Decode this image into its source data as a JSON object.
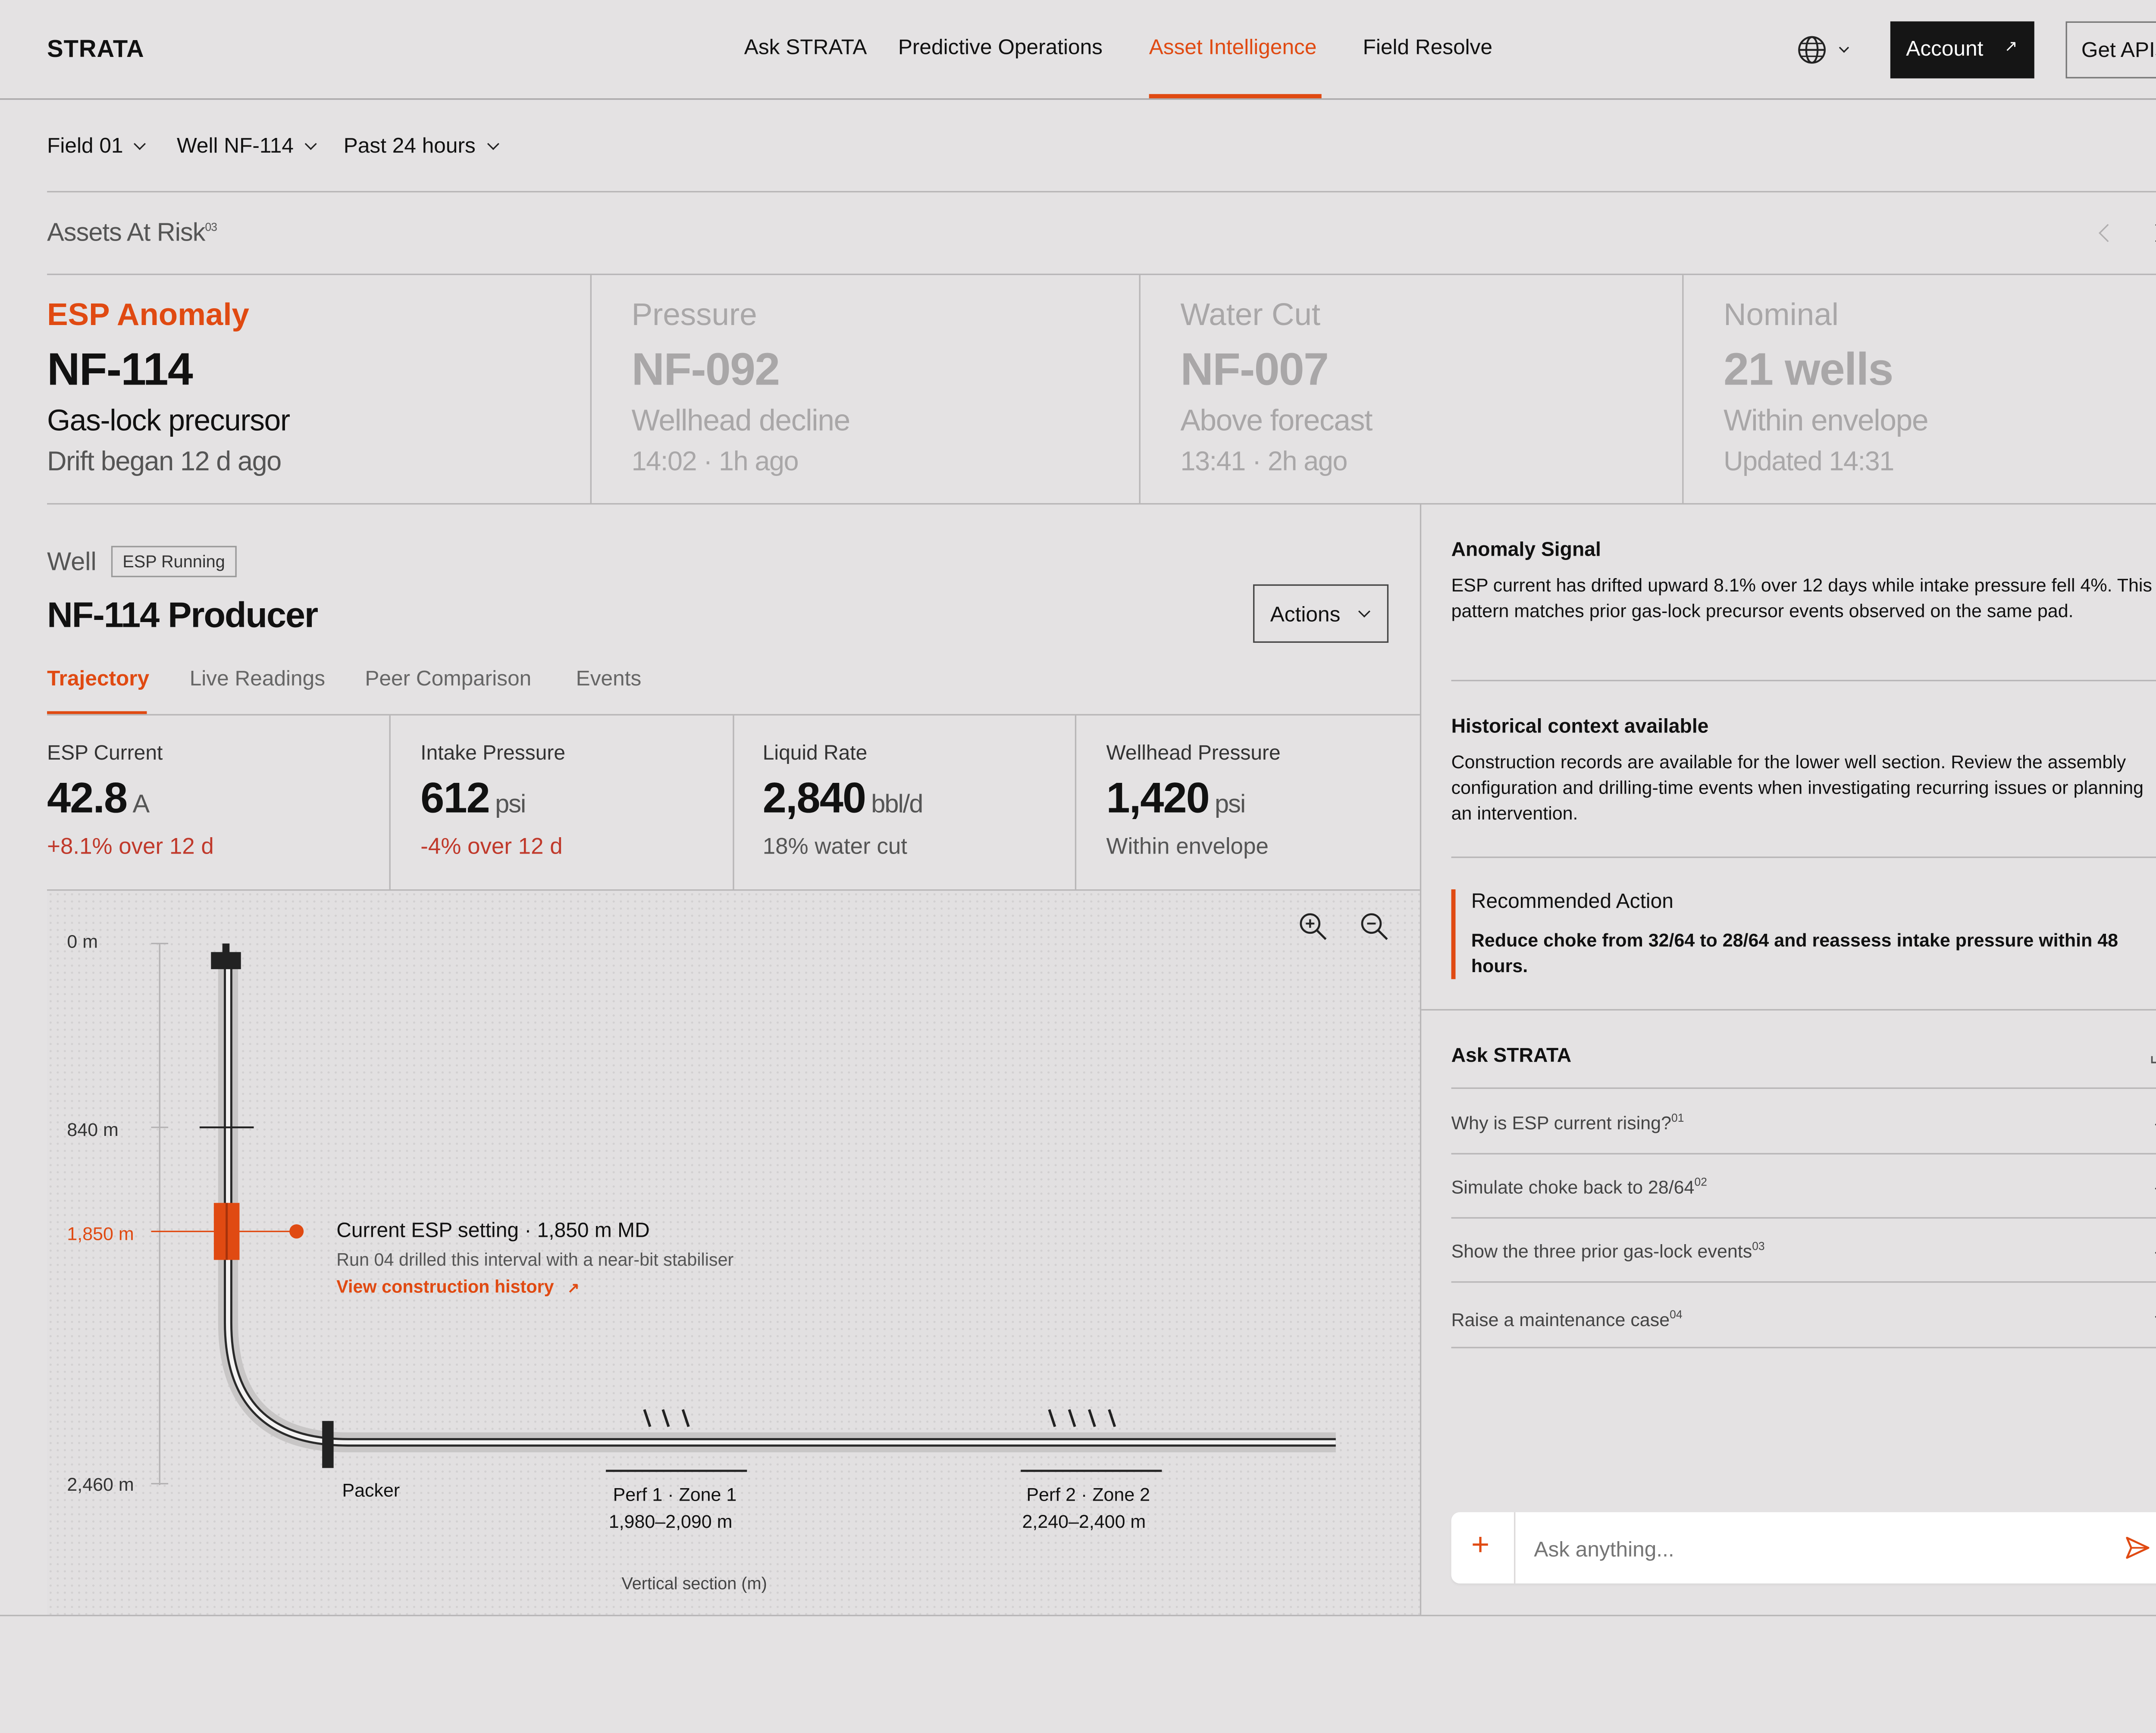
{
  "header": {
    "brand": "STRATA",
    "nav": [
      {
        "label": "Ask STRATA",
        "active": false
      },
      {
        "label": "Predictive Operations",
        "active": false
      },
      {
        "label": "Asset Intelligence",
        "active": true
      },
      {
        "label": "Field Resolve",
        "active": false
      }
    ],
    "language_icon": "globe-icon",
    "account_label": "Account",
    "get_apis_label": "Get APIs"
  },
  "filters": {
    "field": "Field 01",
    "well": "Well NF-114",
    "period": "Past 24 hours"
  },
  "risk": {
    "title": "Assets At Risk",
    "count": "03",
    "cards": [
      {
        "kind": "ESP Anomaly",
        "id": "NF-114",
        "desc": "Gas-lock precursor",
        "sub": "Drift began 12 d ago",
        "active": true
      },
      {
        "kind": "Pressure",
        "id": "NF-092",
        "desc": "Wellhead decline",
        "sub": "14:02 · 1h ago",
        "active": false
      },
      {
        "kind": "Water Cut",
        "id": "NF-007",
        "desc": "Above forecast",
        "sub": "13:41 · 2h ago",
        "active": false
      },
      {
        "kind": "Nominal",
        "id": "21 wells",
        "desc": "Within envelope",
        "sub": "Updated 14:31",
        "active": false
      }
    ]
  },
  "well": {
    "label": "Well",
    "status_badge": "ESP Running",
    "name": "NF-114 Producer",
    "actions_label": "Actions",
    "tabs": [
      {
        "label": "Trajectory",
        "active": true
      },
      {
        "label": "Live Readings",
        "active": false
      },
      {
        "label": "Peer Comparison",
        "active": false
      },
      {
        "label": "Events",
        "active": false
      }
    ],
    "metrics": [
      {
        "label": "ESP Current",
        "value": "42.8",
        "unit": "A",
        "sub": "+8.1% over 12 d",
        "alert": true
      },
      {
        "label": "Intake Pressure",
        "value": "612",
        "unit": "psi",
        "sub": "-4% over 12 d",
        "alert": true
      },
      {
        "label": "Liquid Rate",
        "value": "2,840",
        "unit": "bbl/d",
        "sub": "18% water cut",
        "alert": false
      },
      {
        "label": "Wellhead Pressure",
        "value": "1,420",
        "unit": "psi",
        "sub": "Within envelope",
        "alert": false
      }
    ]
  },
  "trajectory": {
    "depth_labels": [
      "0 m",
      "840 m",
      "1,850 m",
      "2,460 m"
    ],
    "esp_title": "Current ESP setting · 1,850 m MD",
    "esp_note": "Run 04 drilled this interval with a near-bit stabiliser",
    "esp_link": "View construction history",
    "packer_label": "Packer",
    "perfs": [
      {
        "name": "Perf 1 · Zone 1",
        "range": "1,980–2,090 m"
      },
      {
        "name": "Perf 2 · Zone 2",
        "range": "2,240–2,400 m"
      }
    ],
    "axis_caption": "Vertical section (m)"
  },
  "side": {
    "anomaly_title": "Anomaly Signal",
    "anomaly_text": "ESP current has drifted upward 8.1% over 12 days while intake pressure fell 4%. This pattern matches prior gas-lock precursor events observed on the same pad.",
    "history_title": "Historical context available",
    "history_text": "Construction records are available for the lower well section. Review the assembly configuration and drilling-time events when investigating recurring issues or planning an intervention.",
    "rec_title": "Recommended Action",
    "rec_text": "Reduce choke from 32/64 to 28/64 and reassess intake pressure within 48 hours.",
    "ask_title": "Ask STRATA",
    "questions": [
      {
        "text": "Why is ESP current rising?",
        "num": "01"
      },
      {
        "text": "Simulate choke back to 28/64",
        "num": "02"
      },
      {
        "text": "Show the three prior gas-lock events",
        "num": "03"
      },
      {
        "text": "Raise a maintenance case",
        "num": "04"
      }
    ],
    "input_placeholder": "Ask anything..."
  },
  "colors": {
    "accent": "#e04a12",
    "alert_red": "#c0392b",
    "background": "#e4e2e3",
    "dark_button": "#151515"
  }
}
